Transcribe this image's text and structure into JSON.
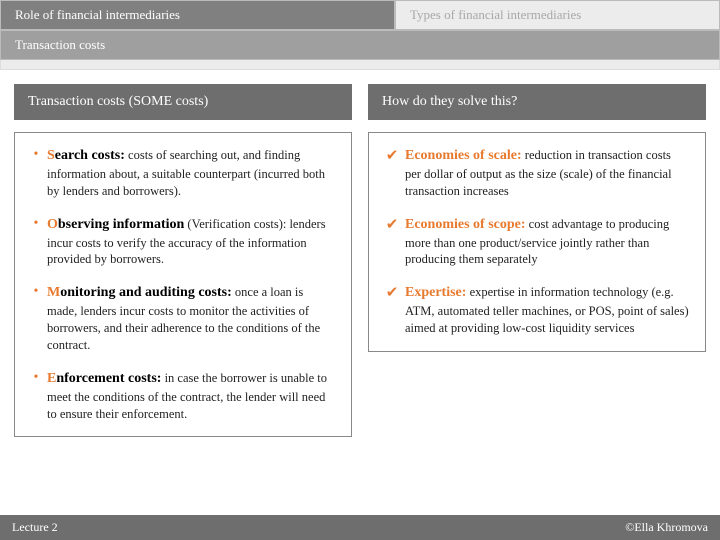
{
  "tabs": {
    "row1": {
      "active": "Role of financial intermediaries",
      "inactive": "Types of financial intermediaries"
    },
    "row2": "Transaction costs"
  },
  "left": {
    "title": "Transaction costs (SOME costs)",
    "items": [
      {
        "term_first": "S",
        "term_rest": "earch costs:",
        "desc": " costs of searching out, and finding information about, a suitable counterpart (incurred both by lenders and borrowers)."
      },
      {
        "term_first": "O",
        "term_rest": "bserving information",
        "desc": " (Verification costs): lenders incur costs to verify the accuracy of the information provided by borrowers."
      },
      {
        "term_first": "M",
        "term_rest": "onitoring and auditing costs:",
        "desc": " once a loan is made, lenders incur costs to monitor the activities of borrowers, and their adherence to the conditions of the contract."
      },
      {
        "term_first": "E",
        "term_rest": "nforcement costs:",
        "desc": " in case the borrower is unable to meet the conditions of the contract, the lender will need to ensure their enforcement."
      }
    ]
  },
  "right": {
    "title": "How do they solve this?",
    "items": [
      {
        "term": "Economies of scale:",
        "desc": " reduction in transaction costs per dollar of output as the size (scale) of the financial transaction increases"
      },
      {
        "term": "Economies of scope:",
        "desc": " cost advantage to producing more than one product/service jointly rather than producing them separately"
      },
      {
        "term": "Expertise:",
        "desc": " expertise in information technology (e.g. ATM, automated teller machines, or POS, point of sales) aimed at providing low-cost liquidity services"
      }
    ]
  },
  "footer": {
    "left": "Lecture 2",
    "right": "©Ella Khromova"
  },
  "colors": {
    "accent": "#e77a2f",
    "header_bg": "#6e6e6e",
    "tab_active_bg": "#808080",
    "tab_inactive_bg": "#ececec"
  }
}
